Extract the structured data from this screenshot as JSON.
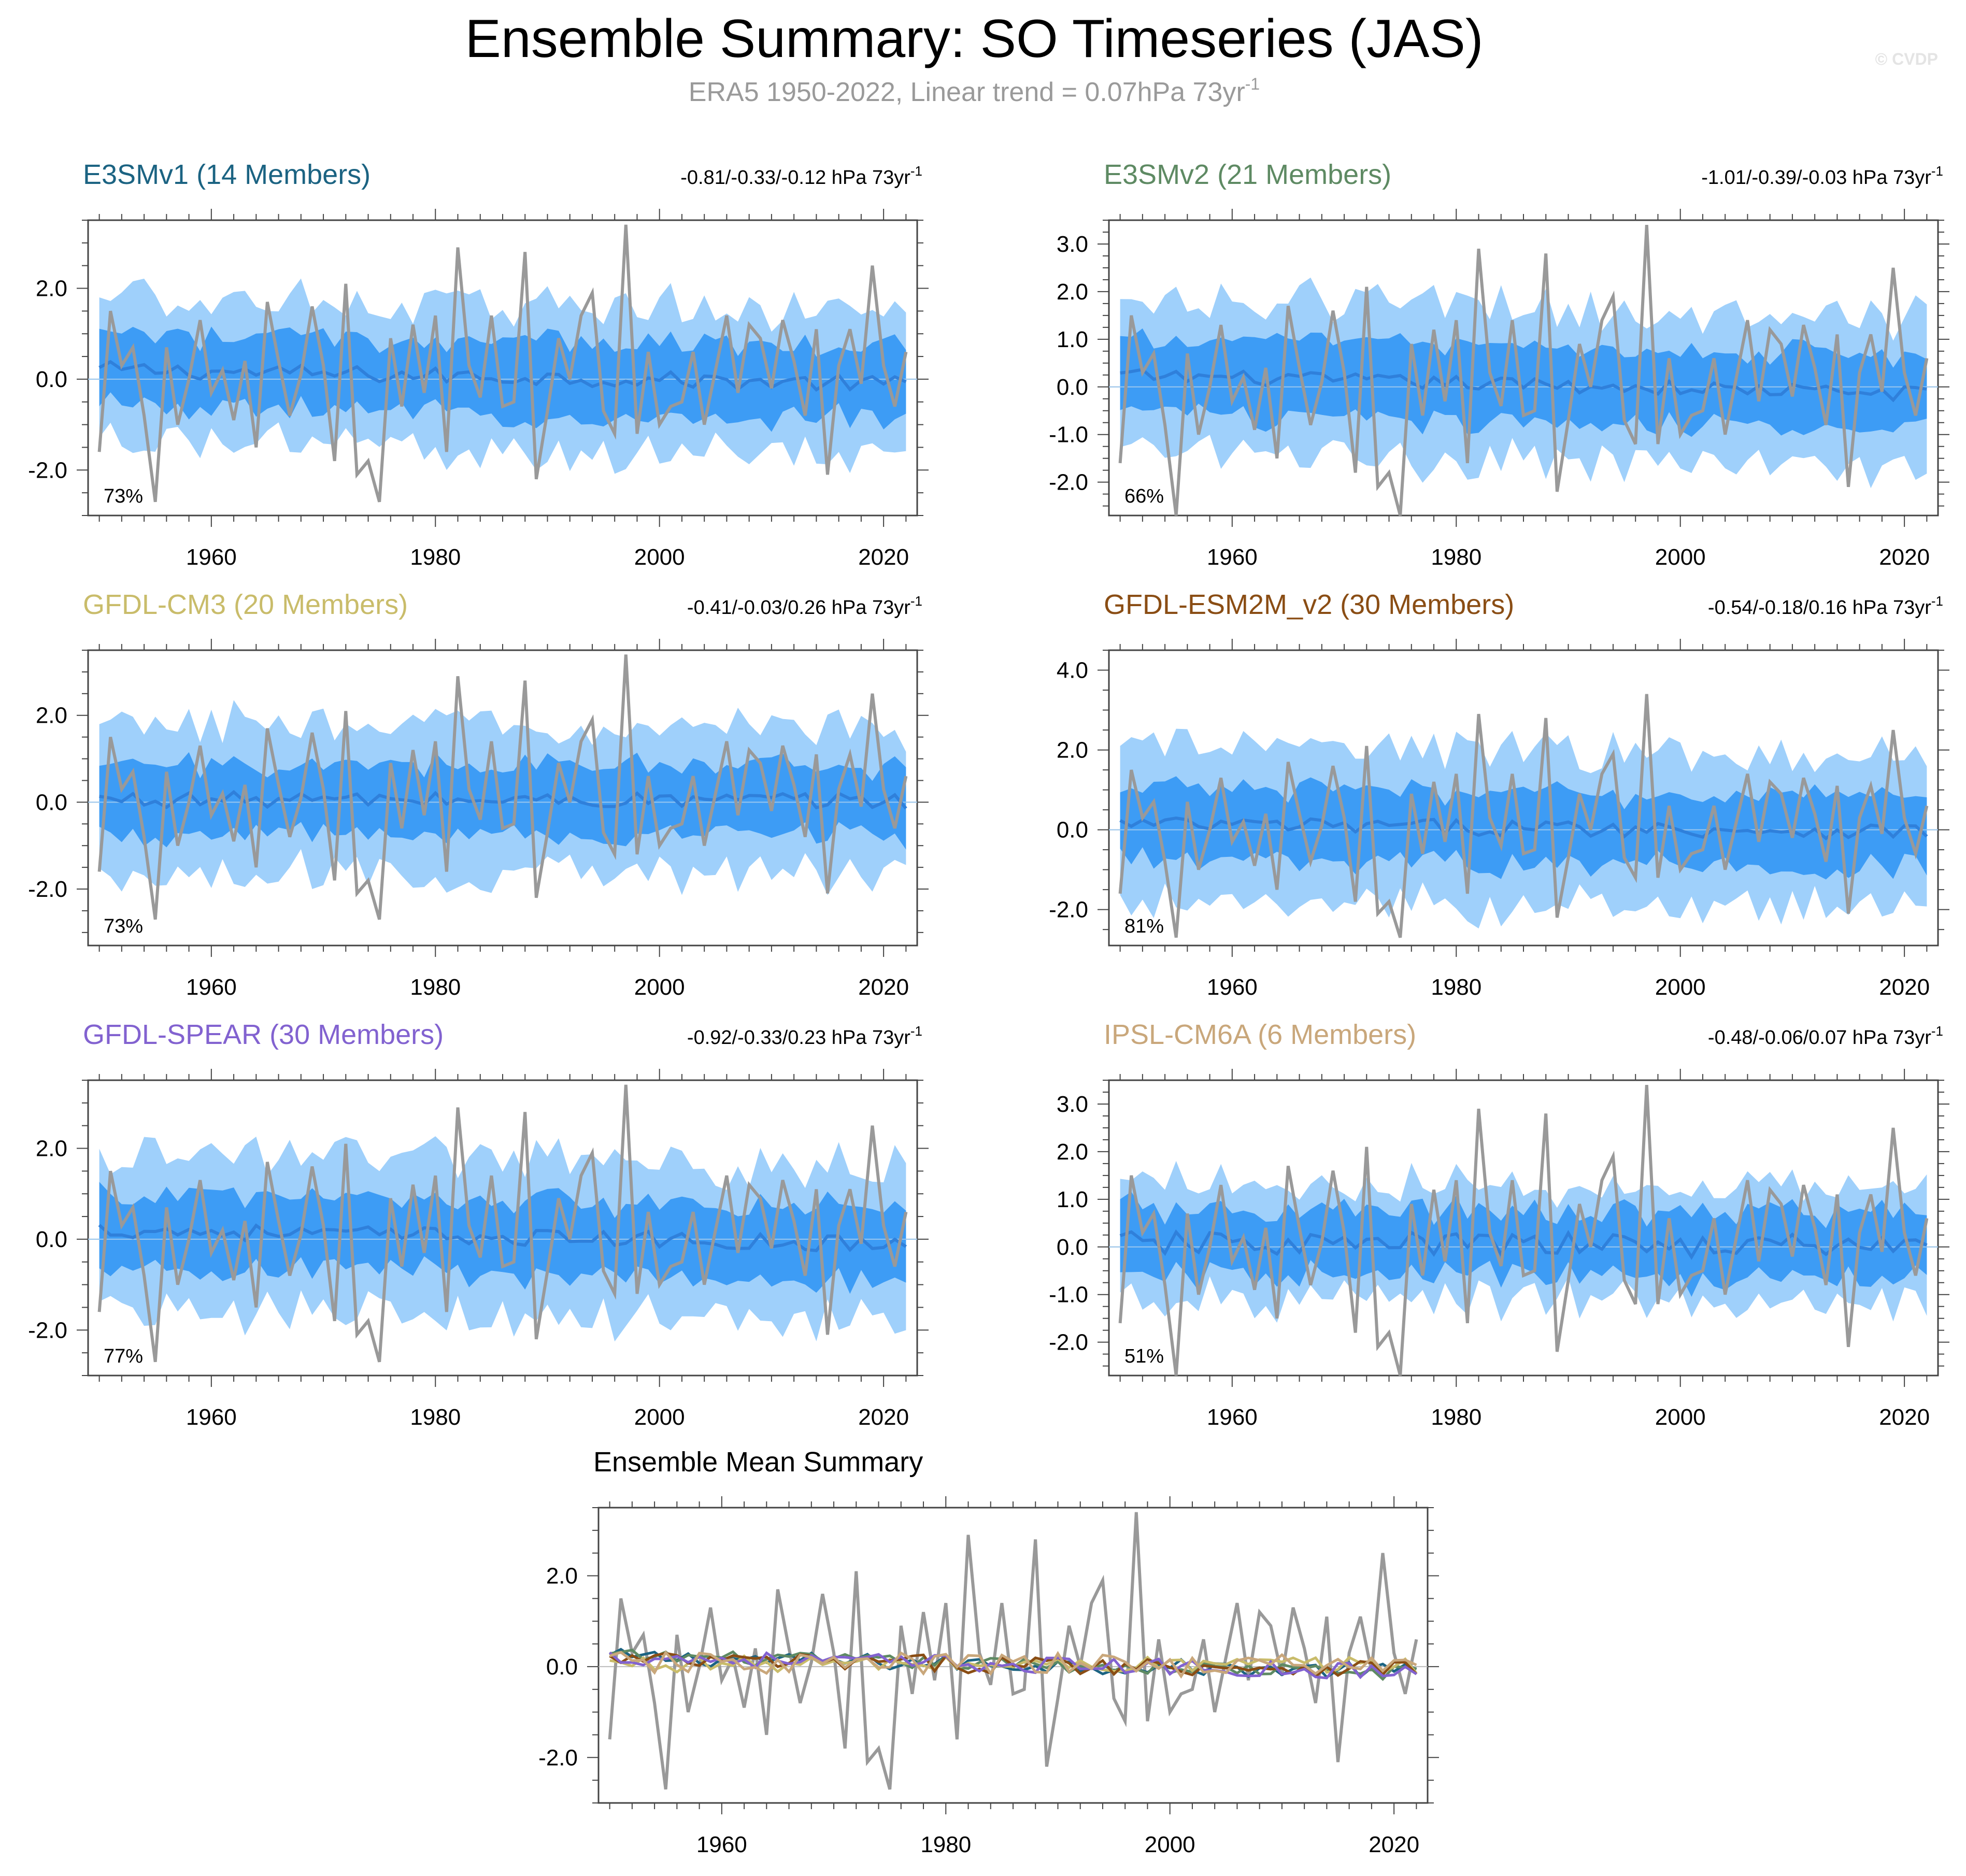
{
  "title": "Ensemble Summary: SO Timeseries (JAS)",
  "subtitle": "ERA5 1950-2022, Linear trend = 0.07hPa 73yr",
  "subtitle_sup": "-1",
  "watermark": "© CVDP",
  "colors": {
    "outer_band": "#9fd0fb",
    "inner_band": "#3d9cf5",
    "ens_mean": "#2f80db",
    "obs": "#999999",
    "axis": "#444444",
    "zero_line": "#bbbbbb"
  },
  "chart_data": {
    "type": "line",
    "x": [
      1950,
      1951,
      1952,
      1953,
      1954,
      1955,
      1956,
      1957,
      1958,
      1959,
      1960,
      1961,
      1962,
      1963,
      1964,
      1965,
      1966,
      1967,
      1968,
      1969,
      1970,
      1971,
      1972,
      1973,
      1974,
      1975,
      1976,
      1977,
      1978,
      1979,
      1980,
      1981,
      1982,
      1983,
      1984,
      1985,
      1986,
      1987,
      1988,
      1989,
      1990,
      1991,
      1992,
      1993,
      1994,
      1995,
      1996,
      1997,
      1998,
      1999,
      2000,
      2001,
      2002,
      2003,
      2004,
      2005,
      2006,
      2007,
      2008,
      2009,
      2010,
      2011,
      2012,
      2013,
      2014,
      2015,
      2016,
      2017,
      2018,
      2019,
      2020,
      2021,
      2022
    ],
    "observed": {
      "name": "ERA5",
      "values": [
        -1.6,
        1.5,
        0.3,
        0.7,
        -0.8,
        -2.7,
        0.7,
        -1.0,
        0.0,
        1.3,
        -0.3,
        0.2,
        -0.9,
        0.4,
        -1.5,
        1.7,
        0.4,
        -0.8,
        0.1,
        1.6,
        0.3,
        -1.8,
        2.1,
        -2.1,
        -1.8,
        -2.7,
        0.9,
        -0.6,
        1.2,
        -0.3,
        1.4,
        -1.6,
        2.9,
        0.3,
        -0.4,
        1.4,
        -0.6,
        -0.5,
        2.8,
        -2.2,
        -0.7,
        0.9,
        0.0,
        1.4,
        1.9,
        -0.7,
        -1.2,
        3.4,
        -1.2,
        0.6,
        -1.0,
        -0.6,
        -0.5,
        0.6,
        -1.0,
        0.2,
        1.4,
        -0.3,
        1.2,
        0.9,
        -0.2,
        1.3,
        0.4,
        -0.8,
        1.1,
        -2.1,
        0.3,
        1.1,
        -0.1,
        2.5,
        0.3,
        -0.6,
        0.6
      ]
    },
    "panels": [
      {
        "name": "E3SMv1",
        "title": "E3SMv1 (14 Members)",
        "color": "#1b6382",
        "trend_text": "-0.81/-0.33/-0.12 hPa 73yr",
        "trend_sup": "-1",
        "pct": "73%",
        "ylim": [
          -3.0,
          3.5
        ],
        "yticks": [
          -2.0,
          0.0,
          2.0
        ],
        "outer_w": 1.6,
        "inner_w": 0.8,
        "mean_amp": 0.18,
        "mean_trend": -0.33
      },
      {
        "name": "E3SMv2",
        "title": "E3SMv2 (21 Members)",
        "color": "#5e8a63",
        "trend_text": "-1.01/-0.39/-0.03 hPa 73yr",
        "trend_sup": "-1",
        "pct": "66%",
        "ylim": [
          -2.7,
          3.5
        ],
        "yticks": [
          -2.0,
          -1.0,
          0.0,
          1.0,
          2.0,
          3.0
        ],
        "outer_w": 1.6,
        "inner_w": 0.8,
        "mean_amp": 0.15,
        "mean_trend": -0.39
      },
      {
        "name": "GFDL-CM3",
        "title": "GFDL-CM3 (20 Members)",
        "color": "#c9bc6a",
        "trend_text": "-0.41/-0.03/0.26 hPa 73yr",
        "trend_sup": "-1",
        "pct": "73%",
        "ylim": [
          -3.3,
          3.5
        ],
        "yticks": [
          -2.0,
          0.0,
          2.0
        ],
        "outer_w": 1.7,
        "inner_w": 0.8,
        "mean_amp": 0.18,
        "mean_trend": -0.03
      },
      {
        "name": "GFDL-ESM2M_v2",
        "title": "GFDL-ESM2M_v2 (30 Members)",
        "color": "#8a4d14",
        "trend_text": "-0.54/-0.18/0.16 hPa 73yr",
        "trend_sup": "-1",
        "pct": "81%",
        "ylim": [
          -2.9,
          4.5
        ],
        "yticks": [
          -2.0,
          0.0,
          2.0,
          4.0
        ],
        "outer_w": 1.9,
        "inner_w": 0.9,
        "mean_amp": 0.2,
        "mean_trend": -0.18
      },
      {
        "name": "GFDL-SPEAR",
        "title": "GFDL-SPEAR (30 Members)",
        "color": "#8262d0",
        "trend_text": "-0.92/-0.33/0.23 hPa 73yr",
        "trend_sup": "-1",
        "pct": "77%",
        "ylim": [
          -3.0,
          3.5
        ],
        "yticks": [
          -2.0,
          0.0,
          2.0
        ],
        "outer_w": 1.7,
        "inner_w": 0.8,
        "mean_amp": 0.18,
        "mean_trend": -0.33
      },
      {
        "name": "IPSL-CM6A",
        "title": "IPSL-CM6A (6 Members)",
        "color": "#c9a77b",
        "trend_text": "-0.48/-0.06/0.07 hPa 73yr",
        "trend_sup": "-1",
        "pct": "51%",
        "ylim": [
          -2.7,
          3.5
        ],
        "yticks": [
          -2.0,
          -1.0,
          0.0,
          1.0,
          2.0,
          3.0
        ],
        "outer_w": 1.2,
        "inner_w": 0.7,
        "mean_amp": 0.25,
        "mean_trend": -0.06
      }
    ],
    "xticks": [
      1960,
      1980,
      2000,
      2020
    ],
    "xlim": [
      1949,
      2023
    ],
    "ensemble_mean_summary": {
      "title": "Ensemble Mean Summary",
      "ylim": [
        -3.0,
        3.5
      ],
      "yticks": [
        -2.0,
        0.0,
        2.0
      ]
    }
  }
}
